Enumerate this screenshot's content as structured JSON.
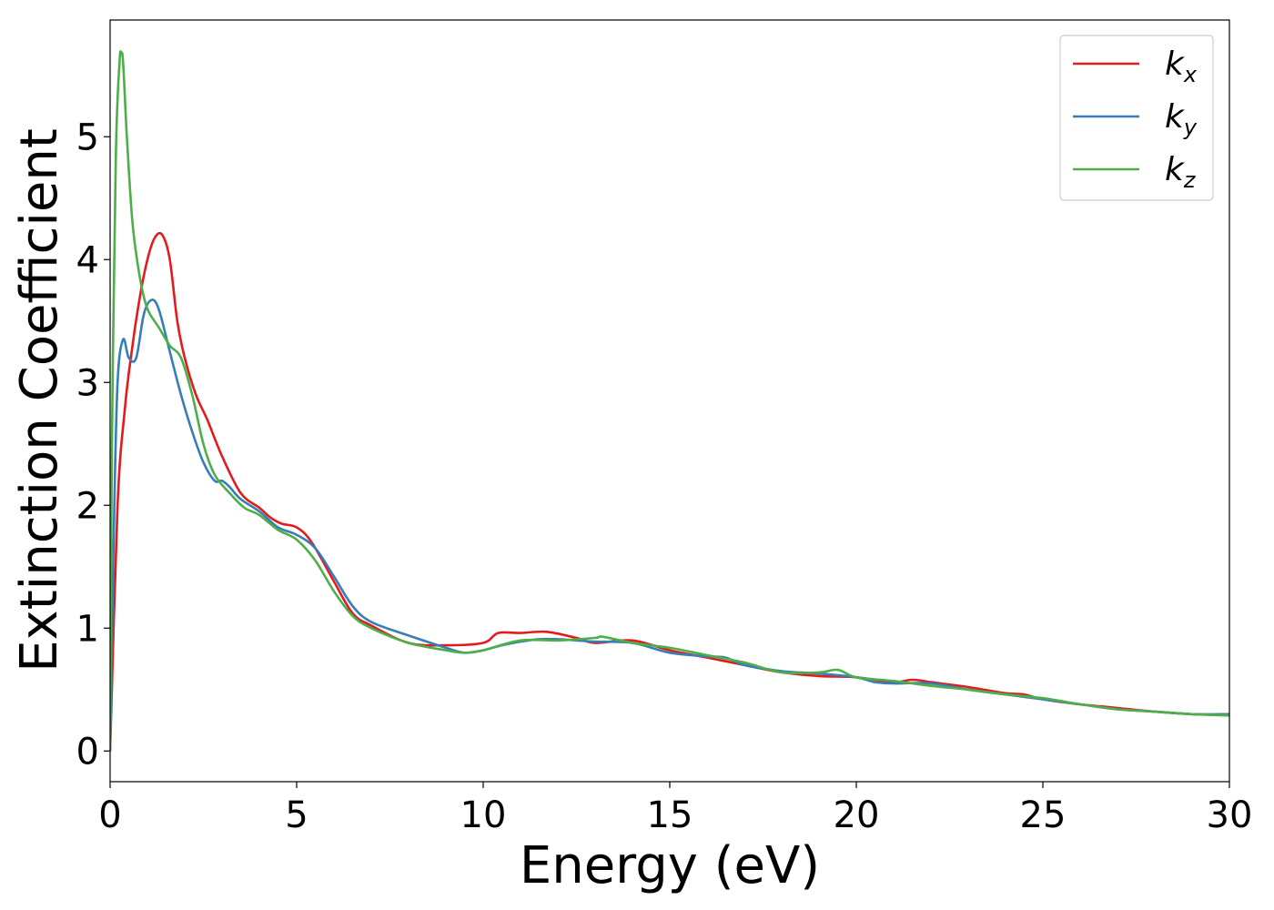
{
  "chart_data": {
    "type": "line",
    "xlabel": "Energy (eV)",
    "ylabel": "Extinction Coefficient",
    "xlim": [
      0,
      30
    ],
    "ylim": [
      -0.25,
      5.95
    ],
    "xticks": [
      "0",
      "5",
      "10",
      "15",
      "20",
      "25",
      "30"
    ],
    "yticks": [
      "0",
      "1",
      "2",
      "3",
      "4",
      "5"
    ],
    "grid": false,
    "legend_position": "top-right",
    "series": [
      {
        "name": "k",
        "sub": "x",
        "color": "#e41a1c",
        "x": [
          0,
          0.2,
          0.4,
          0.6,
          0.8,
          1.0,
          1.2,
          1.4,
          1.6,
          1.8,
          2.0,
          2.3,
          2.6,
          3.0,
          3.5,
          4.0,
          4.3,
          4.6,
          5.0,
          5.4,
          6.0,
          6.5,
          7.0,
          8.0,
          9.0,
          10.0,
          10.4,
          11.0,
          11.7,
          12.5,
          13.0,
          14.0,
          15.0,
          16.0,
          17.0,
          18.0,
          19.0,
          20.0,
          21.0,
          21.5,
          22.0,
          23.0,
          24.0,
          24.5,
          25.0,
          26.0,
          27.0,
          28.0,
          29.0,
          30.0
        ],
        "values": [
          0.0,
          2.0,
          2.8,
          3.3,
          3.7,
          4.0,
          4.18,
          4.2,
          4.0,
          3.5,
          3.2,
          2.9,
          2.7,
          2.4,
          2.1,
          1.98,
          1.9,
          1.85,
          1.82,
          1.7,
          1.38,
          1.12,
          1.02,
          0.88,
          0.86,
          0.88,
          0.96,
          0.96,
          0.97,
          0.92,
          0.88,
          0.9,
          0.82,
          0.76,
          0.7,
          0.64,
          0.61,
          0.6,
          0.56,
          0.58,
          0.56,
          0.52,
          0.47,
          0.46,
          0.42,
          0.38,
          0.35,
          0.32,
          0.3,
          0.29
        ]
      },
      {
        "name": "k",
        "sub": "y",
        "color": "#377eb8",
        "x": [
          0,
          0.1,
          0.2,
          0.35,
          0.5,
          0.7,
          0.9,
          1.1,
          1.3,
          1.6,
          1.9,
          2.2,
          2.5,
          2.8,
          3.0,
          3.2,
          3.5,
          4.0,
          4.5,
          5.0,
          5.5,
          6.0,
          6.5,
          7.0,
          8.0,
          9.0,
          9.5,
          10.0,
          10.5,
          11.0,
          11.5,
          12.0,
          12.5,
          13.0,
          14.0,
          15.0,
          16.0,
          16.5,
          17.0,
          18.0,
          19.0,
          20.0,
          20.5,
          21.0,
          22.0,
          23.0,
          24.0,
          25.0,
          26.0,
          27.0,
          28.0,
          29.0,
          30.0
        ],
        "values": [
          0.0,
          1.8,
          3.0,
          3.35,
          3.2,
          3.2,
          3.55,
          3.67,
          3.6,
          3.25,
          2.9,
          2.6,
          2.35,
          2.2,
          2.2,
          2.15,
          2.05,
          1.95,
          1.82,
          1.76,
          1.65,
          1.42,
          1.18,
          1.05,
          0.94,
          0.84,
          0.8,
          0.82,
          0.86,
          0.89,
          0.91,
          0.91,
          0.9,
          0.89,
          0.88,
          0.8,
          0.77,
          0.76,
          0.7,
          0.65,
          0.63,
          0.6,
          0.56,
          0.55,
          0.55,
          0.5,
          0.46,
          0.42,
          0.38,
          0.34,
          0.32,
          0.3,
          0.3
        ]
      },
      {
        "name": "k",
        "sub": "z",
        "color": "#4daf4a",
        "x": [
          0,
          0.05,
          0.15,
          0.25,
          0.3,
          0.35,
          0.45,
          0.6,
          0.8,
          1.0,
          1.3,
          1.6,
          1.9,
          2.2,
          2.5,
          2.8,
          3.2,
          3.6,
          4.0,
          4.5,
          5.0,
          5.5,
          6.0,
          6.5,
          7.0,
          8.0,
          9.0,
          9.5,
          10.0,
          11.0,
          12.0,
          13.0,
          13.2,
          14.0,
          15.0,
          16.0,
          17.0,
          18.0,
          19.0,
          19.5,
          20.0,
          21.0,
          22.0,
          23.0,
          24.0,
          25.0,
          26.0,
          27.0,
          28.0,
          29.0,
          30.0
        ],
        "values": [
          0.0,
          2.5,
          4.8,
          5.6,
          5.68,
          5.6,
          5.0,
          4.3,
          3.85,
          3.6,
          3.45,
          3.3,
          3.2,
          2.9,
          2.5,
          2.25,
          2.1,
          1.98,
          1.92,
          1.8,
          1.72,
          1.55,
          1.3,
          1.1,
          1.0,
          0.88,
          0.82,
          0.8,
          0.82,
          0.9,
          0.9,
          0.92,
          0.93,
          0.88,
          0.84,
          0.78,
          0.72,
          0.64,
          0.64,
          0.66,
          0.6,
          0.57,
          0.53,
          0.5,
          0.46,
          0.43,
          0.38,
          0.34,
          0.32,
          0.3,
          0.29
        ]
      }
    ]
  }
}
